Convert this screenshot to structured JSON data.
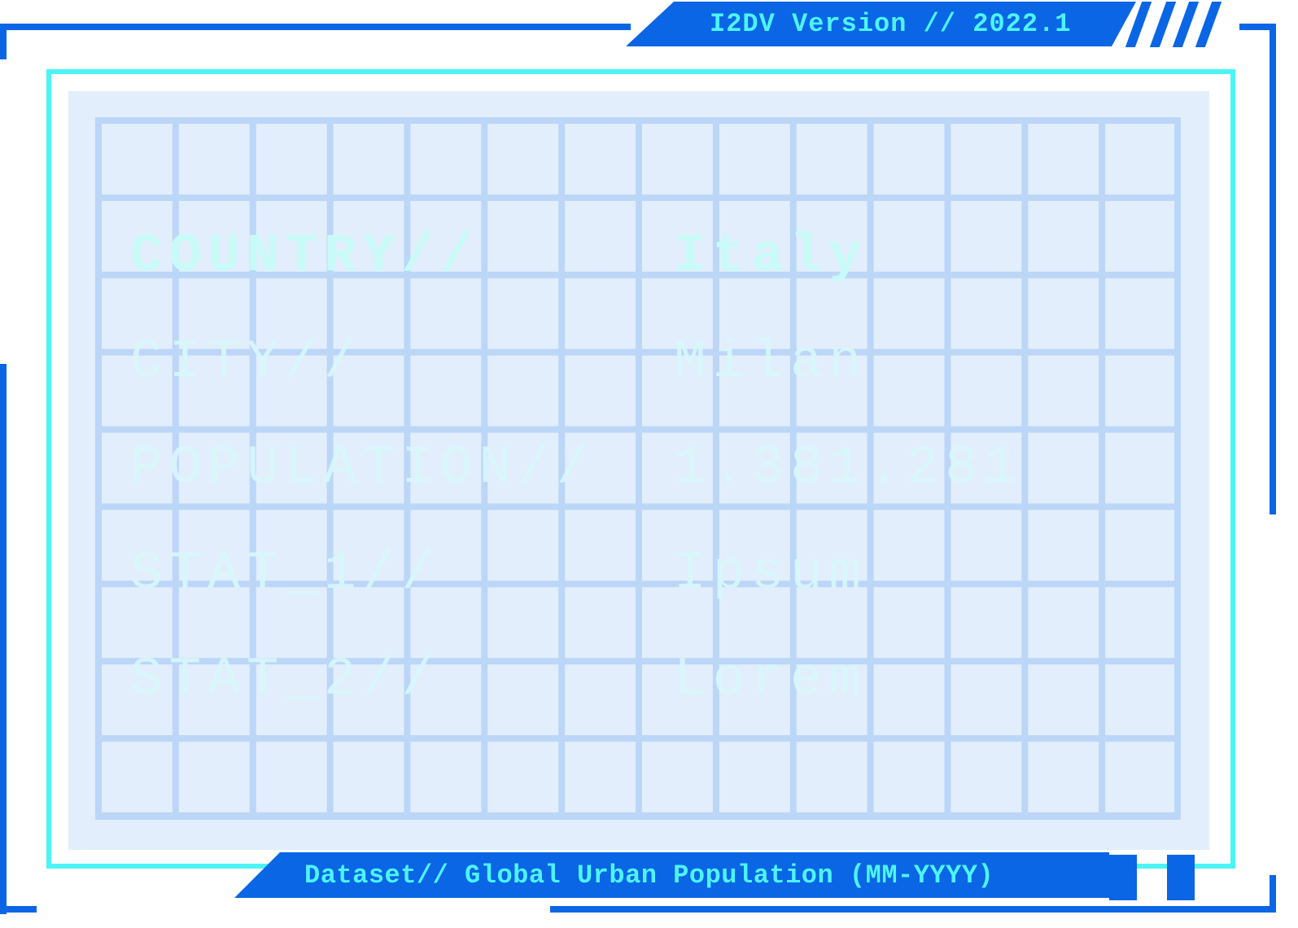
{
  "header": {
    "version_text": "I2DV Version // 2022.1"
  },
  "footer": {
    "dataset_text": "Dataset// Global Urban Population (MM-YYYY)"
  },
  "rows": [
    {
      "label": "COUNTRY//",
      "value": "Italy"
    },
    {
      "label": "CITY//",
      "value": "Milan"
    },
    {
      "label": "POPULATION//",
      "value": "1.381.281"
    },
    {
      "label": "STAT_1//",
      "value": "Ipsum"
    },
    {
      "label": "STAT_2//",
      "value": "Lorem"
    }
  ],
  "colors": {
    "primary_blue": "#0a66e4",
    "accent_cyan": "#4df4f6",
    "panel_bg": "#e2eefb",
    "grid_line": "#bcd6f8"
  }
}
